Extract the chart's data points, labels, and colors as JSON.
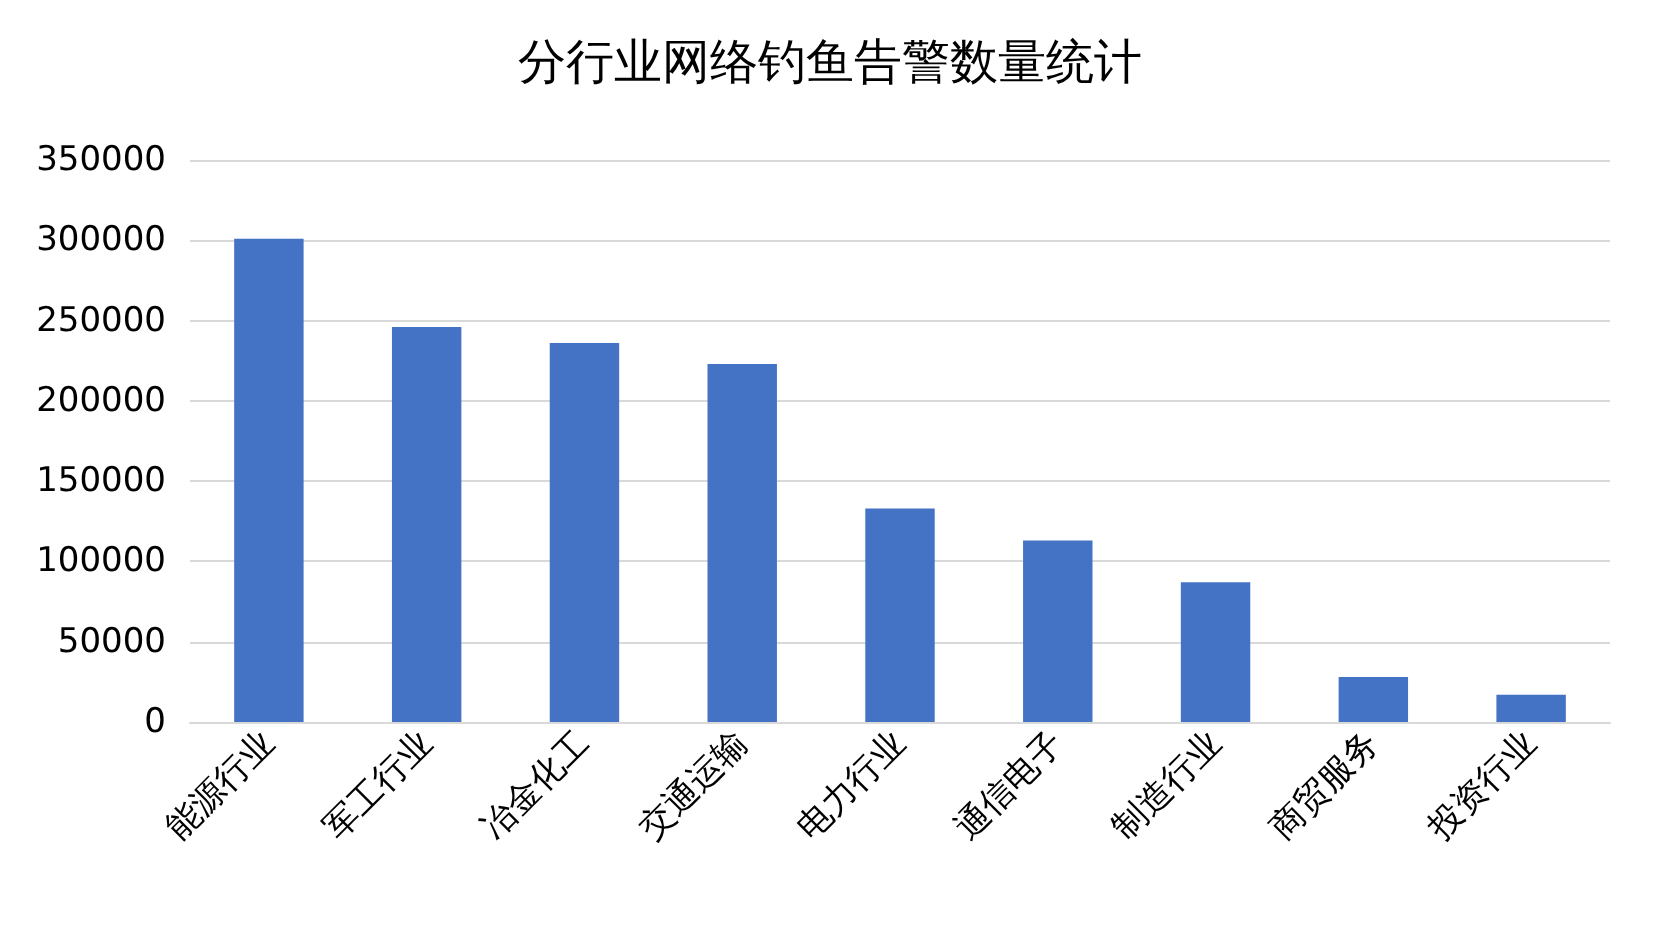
{
  "chart_data": {
    "type": "bar",
    "title": "分行业网络钓鱼告警数量统计",
    "categories": [
      "能源行业",
      "军工行业",
      "冶金化工",
      "交通运输",
      "电力行业",
      "通信电子",
      "制造行业",
      "商贸服务",
      "投资行业"
    ],
    "values": [
      301000,
      246000,
      236000,
      223000,
      133000,
      113000,
      87000,
      28000,
      17000
    ],
    "color": "#4472c4",
    "ylim": [
      0,
      350000
    ],
    "yticks": [
      0,
      50000,
      100000,
      150000,
      200000,
      250000,
      300000,
      350000
    ],
    "grid": "y"
  }
}
